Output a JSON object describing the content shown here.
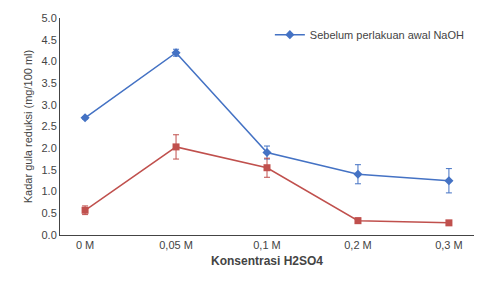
{
  "chart_data": {
    "type": "line",
    "xlabel": "Konsentrasi H2SO4",
    "ylabel": "Kadar gula reduksi (mg/100 ml)",
    "categories": [
      "0 M",
      "0,05 M",
      "0,1 M",
      "0,2 M",
      "0,3 M"
    ],
    "series": [
      {
        "name": "Sebelum perlakuan awal NaOH",
        "color": "#4472C4",
        "marker": "diamond",
        "values": [
          2.7,
          4.2,
          1.9,
          1.4,
          1.25
        ],
        "errors": [
          0.03,
          0.08,
          0.15,
          0.22,
          0.28
        ]
      },
      {
        "color": "#C0504D",
        "marker": "square",
        "values": [
          0.57,
          2.03,
          1.55,
          0.33,
          0.28
        ],
        "errors": [
          0.1,
          0.28,
          0.22,
          0.06,
          0.05
        ]
      }
    ],
    "ylim": [
      0.0,
      5.0
    ],
    "yticks": [
      {
        "value": 0,
        "label": "0.0"
      },
      0.5,
      {
        "value": 1,
        "label": "1.0"
      },
      1.5,
      {
        "value": 2,
        "label": "2.0"
      },
      2.5,
      {
        "value": 3,
        "label": "3.0"
      },
      3.5,
      {
        "value": 4,
        "label": "4.0"
      },
      4.5,
      {
        "value": 5,
        "label": "5.0"
      }
    ],
    "grid": false,
    "legend": "upper right"
  }
}
